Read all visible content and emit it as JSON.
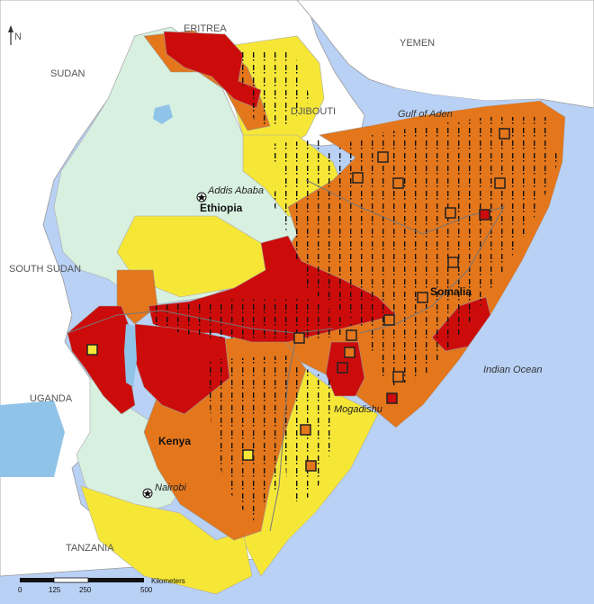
{
  "labels": {
    "eritrea": "ERITREA",
    "yemen": "YEMEN",
    "sudan": "SUDAN",
    "djibouti": "DJIBOUTI",
    "gulf_of_aden": "Gulf of Aden",
    "addis_ababa": "Addis Ababa",
    "ethiopia": "Ethiopia",
    "south_sudan": "SOUTH SUDAN",
    "somalia": "Somalia",
    "uganda": "UGANDA",
    "indian_ocean": "Indian Ocean",
    "mogadishu": "Mogadishu",
    "kenya": "Kenya",
    "nairobi": "Nairobi",
    "tanzania": "TANZANIA"
  },
  "scale_bar": {
    "unit": "Kilometers",
    "ticks": [
      "0",
      "125",
      "250",
      "500"
    ]
  },
  "north_arrow": "N",
  "colors": {
    "sea": "#b9d1f5",
    "land_outside": "#ffffff",
    "phase_1": "#d8f0e0",
    "phase_2": "#f6e737",
    "phase_3": "#e4761b",
    "phase_4": "#cc0c0b",
    "hatch_mark": "#111111"
  }
}
